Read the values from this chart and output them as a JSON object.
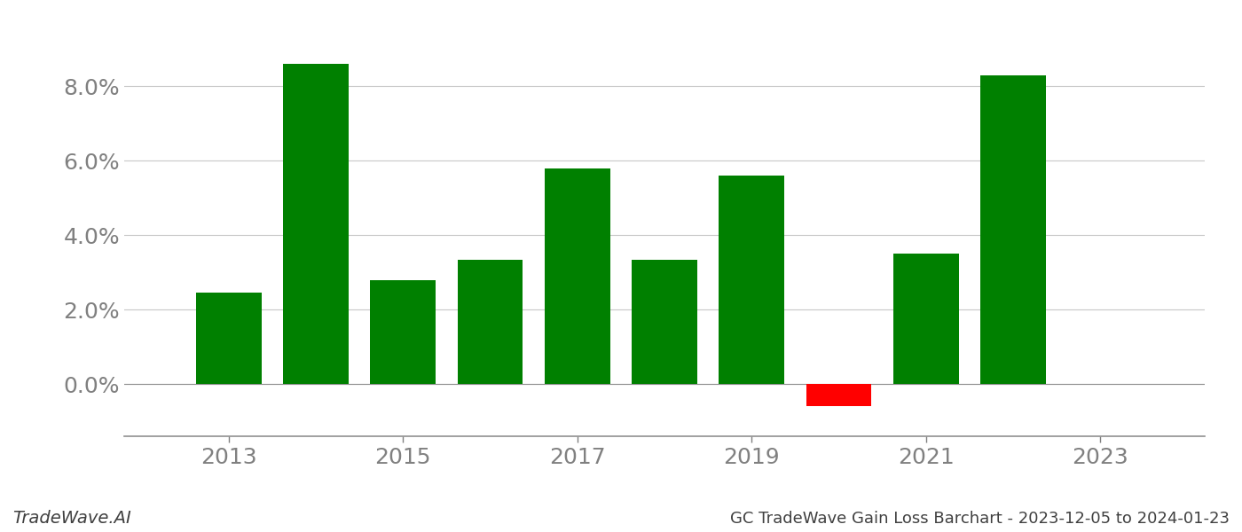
{
  "years": [
    2013,
    2014,
    2015,
    2016,
    2017,
    2018,
    2019,
    2020,
    2021,
    2022
  ],
  "values": [
    0.0245,
    0.086,
    0.028,
    0.0335,
    0.058,
    0.0335,
    0.056,
    -0.006,
    0.035,
    0.083
  ],
  "bar_colors": [
    "#008000",
    "#008000",
    "#008000",
    "#008000",
    "#008000",
    "#008000",
    "#008000",
    "#ff0000",
    "#008000",
    "#008000"
  ],
  "title": "GC TradeWave Gain Loss Barchart - 2023-12-05 to 2024-01-23",
  "watermark": "TradeWave.AI",
  "background_color": "#ffffff",
  "grid_color": "#c8c8c8",
  "axis_label_color": "#808080",
  "ylim_min": -0.014,
  "ylim_max": 0.096,
  "yticks": [
    0.0,
    0.02,
    0.04,
    0.06,
    0.08
  ],
  "xticks": [
    2013,
    2015,
    2017,
    2019,
    2021,
    2023
  ],
  "xlim_min": 2011.8,
  "xlim_max": 2024.2,
  "bar_width": 0.75
}
